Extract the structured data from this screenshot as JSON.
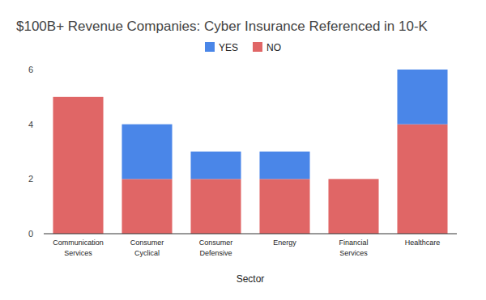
{
  "chart_data": {
    "type": "bar",
    "title": "$100B+ Revenue Companies: Cyber Insurance Referenced in 10-K",
    "x_label": "Sector",
    "categories": [
      "Communication Services",
      "Consumer Cyclical",
      "Consumer Defensive",
      "Energy",
      "Financial Services",
      "Healthcare"
    ],
    "series": [
      {
        "name": "YES",
        "color": "#4a86e8",
        "values": [
          0,
          2,
          1,
          1,
          0,
          2
        ]
      },
      {
        "name": "NO",
        "color": "#e06666",
        "values": [
          5,
          2,
          2,
          2,
          2,
          4
        ]
      }
    ],
    "stacked": true,
    "ylim": [
      0,
      6
    ],
    "yticks": [
      0,
      2,
      4,
      6
    ],
    "grid": false,
    "legend": "top"
  }
}
